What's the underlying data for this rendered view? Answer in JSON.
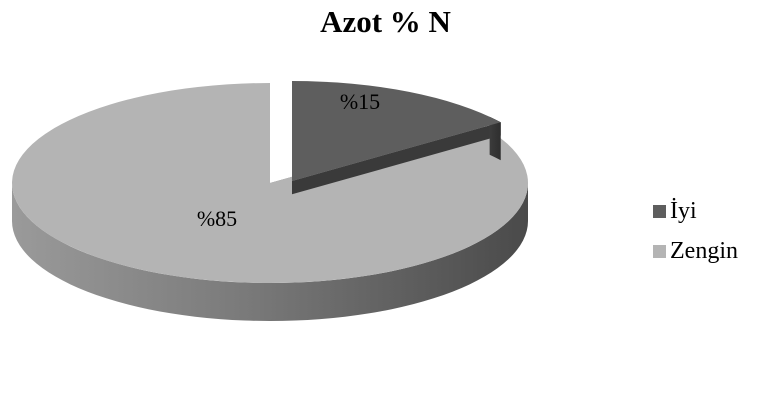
{
  "chart_data": {
    "type": "pie",
    "title": "Azot % N",
    "categories": [
      "İyi",
      "Zengin"
    ],
    "values": [
      15,
      85
    ],
    "data_labels": [
      "%15",
      "%85"
    ],
    "colors": [
      "#5e5e5e",
      "#b4b4b4"
    ],
    "exploded": "İyi",
    "style": "3d",
    "legend_position": "right"
  }
}
